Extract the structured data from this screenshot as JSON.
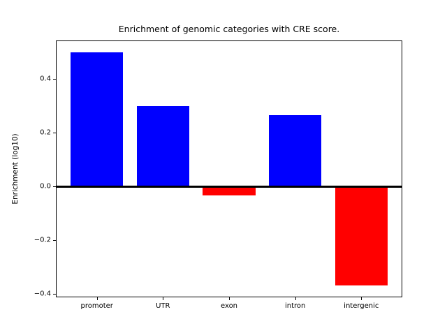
{
  "chart_data": {
    "type": "bar",
    "title": "Enrichment of genomic categories with CRE score.",
    "ylabel": "Enrichment (log10)",
    "xlabel": "",
    "categories": [
      "promoter",
      "UTR",
      "exon",
      "intron",
      "intergenic"
    ],
    "values": [
      0.5,
      0.3,
      -0.035,
      0.265,
      -0.37
    ],
    "bar_colors": [
      "#0000ff",
      "#0000ff",
      "#ff0000",
      "#0000ff",
      "#ff0000"
    ],
    "positive_color": "#0000ff",
    "negative_color": "#ff0000",
    "yticks": [
      0.4,
      0.2,
      0.0,
      -0.2,
      -0.4
    ],
    "ytick_labels": [
      "0.4",
      "0.2",
      "0.0",
      "−0.2",
      "−0.4"
    ],
    "ylim": [
      -0.414,
      0.544
    ],
    "xlim": [
      -0.62,
      4.62
    ],
    "bar_width": 0.8,
    "grid": false,
    "legend": false,
    "zero_line": true,
    "background_color": "#ffffff",
    "axis_color": "#000000"
  }
}
